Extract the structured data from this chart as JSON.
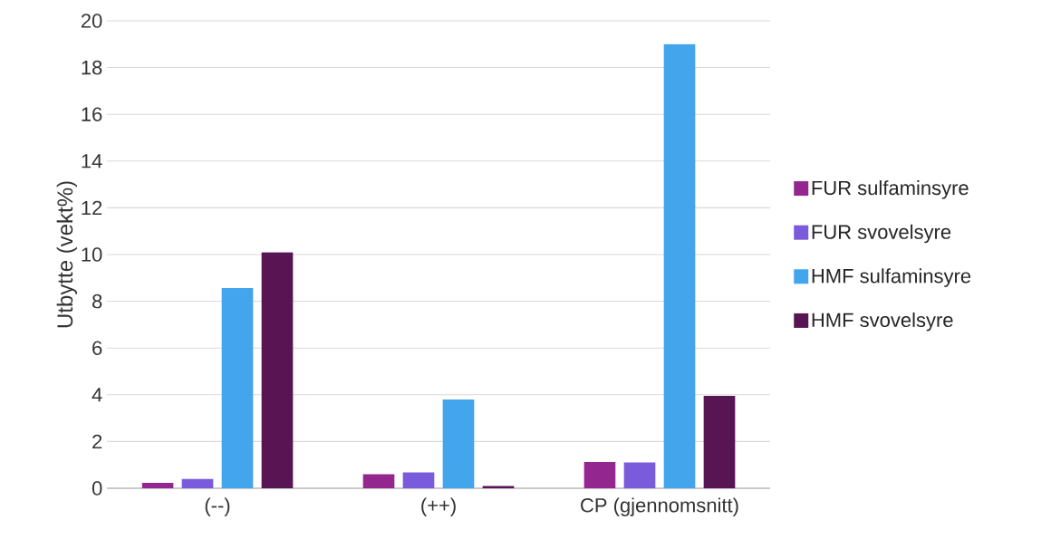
{
  "chart_data": {
    "type": "bar",
    "ylabel": "Utbytte (vekt%)",
    "categories": [
      "(--)",
      "(++)",
      "CP (gjennomsnitt)"
    ],
    "series": [
      {
        "name": "FUR sulfaminsyre",
        "color": "#93278f",
        "values": [
          0.23,
          0.6,
          1.12
        ]
      },
      {
        "name": "FUR svovelsyre",
        "color": "#7a5bdc",
        "values": [
          0.4,
          0.68,
          1.1
        ]
      },
      {
        "name": "HMF sulfaminsyre",
        "color": "#43a5ec",
        "values": [
          8.57,
          3.8,
          19.0
        ]
      },
      {
        "name": "HMF svovelsyre",
        "color": "#581553",
        "values": [
          10.1,
          0.1,
          3.95
        ]
      }
    ],
    "ylim": [
      0,
      20
    ],
    "yticks": [
      0,
      2,
      4,
      6,
      8,
      10,
      12,
      14,
      16,
      18,
      20
    ],
    "grid": "y",
    "legend": "right"
  }
}
